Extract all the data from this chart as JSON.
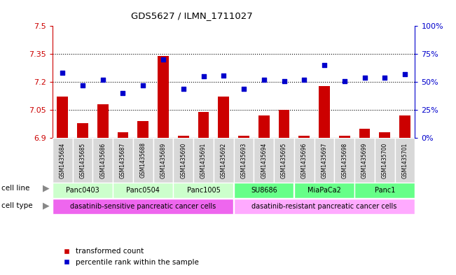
{
  "title": "GDS5627 / ILMN_1711027",
  "samples": [
    "GSM1435684",
    "GSM1435685",
    "GSM1435686",
    "GSM1435687",
    "GSM1435688",
    "GSM1435689",
    "GSM1435690",
    "GSM1435691",
    "GSM1435692",
    "GSM1435693",
    "GSM1435694",
    "GSM1435695",
    "GSM1435696",
    "GSM1435697",
    "GSM1435698",
    "GSM1435699",
    "GSM1435700",
    "GSM1435701"
  ],
  "transformed_count": [
    7.12,
    6.98,
    7.08,
    6.93,
    6.99,
    7.34,
    6.91,
    7.04,
    7.12,
    6.91,
    7.02,
    7.05,
    6.91,
    7.18,
    6.91,
    6.95,
    6.93,
    7.02
  ],
  "percentile_rank": [
    58,
    47,
    52,
    40,
    47,
    70,
    44,
    55,
    56,
    44,
    52,
    51,
    52,
    65,
    51,
    54,
    54,
    57
  ],
  "ylim_left": [
    6.9,
    7.5
  ],
  "ylim_right": [
    0,
    100
  ],
  "yticks_left": [
    6.9,
    7.05,
    7.2,
    7.35,
    7.5
  ],
  "yticks_right": [
    0,
    25,
    50,
    75,
    100
  ],
  "hlines": [
    7.05,
    7.2,
    7.35
  ],
  "bar_color": "#cc0000",
  "dot_color": "#0000cc",
  "sample_box_color": "#c0c0c0",
  "cell_lines": [
    {
      "name": "Panc0403",
      "start": 0,
      "end": 2,
      "color": "#ccffcc"
    },
    {
      "name": "Panc0504",
      "start": 3,
      "end": 5,
      "color": "#ccffcc"
    },
    {
      "name": "Panc1005",
      "start": 6,
      "end": 8,
      "color": "#ccffcc"
    },
    {
      "name": "SU8686",
      "start": 9,
      "end": 11,
      "color": "#66ff88"
    },
    {
      "name": "MiaPaCa2",
      "start": 12,
      "end": 14,
      "color": "#66ff88"
    },
    {
      "name": "Panc1",
      "start": 15,
      "end": 17,
      "color": "#66ff88"
    }
  ],
  "cell_types": [
    {
      "name": "dasatinib-sensitive pancreatic cancer cells",
      "start": 0,
      "end": 8,
      "color": "#ee66ee"
    },
    {
      "name": "dasatinib-resistant pancreatic cancer cells",
      "start": 9,
      "end": 17,
      "color": "#ffaaff"
    }
  ],
  "legend_bar_label": "transformed count",
  "legend_dot_label": "percentile rank within the sample",
  "background_color": "#ffffff"
}
